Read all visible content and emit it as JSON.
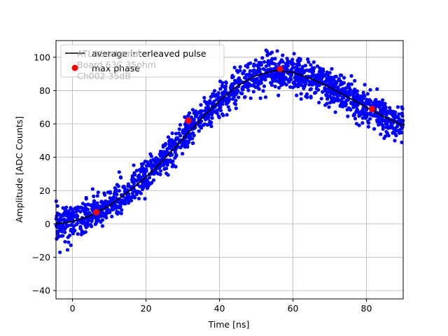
{
  "chart_data": {
    "type": "scatter",
    "title": "",
    "xlabel": "Time [ns]",
    "ylabel": "Amplitude [ADC Counts]",
    "xlim": [
      -4.5,
      90
    ],
    "ylim": [
      -45,
      110
    ],
    "xticks": [
      0,
      20,
      40,
      60,
      80
    ],
    "yticks": [
      -40,
      -20,
      0,
      20,
      40,
      60,
      80,
      100
    ],
    "grid": true,
    "legend_position": "top-left",
    "annotation_lines": [
      "ATLAS Internal",
      "Board 63C 35ohm",
      "Ch002 35dB"
    ],
    "colors": {
      "samples": "#0000ff",
      "average": "#000000",
      "max_phase": "#ff0000",
      "grid": "#b0b0b0"
    },
    "series": [
      {
        "name": "",
        "kind": "scatter-cloud",
        "description_of_cloud": "dense samples around the average pulse",
        "scatter_spread": 5
      },
      {
        "name": "average interleaved pulse",
        "kind": "line",
        "x": [
          -4.5,
          0,
          5,
          10,
          15,
          20,
          25,
          30,
          35,
          40,
          45,
          50,
          55,
          60,
          65,
          70,
          75,
          80,
          85,
          90
        ],
        "y": [
          0,
          1.5,
          5,
          11,
          19,
          28,
          39,
          51,
          63,
          74,
          83,
          89,
          92,
          91,
          87,
          82,
          76,
          70,
          64,
          59
        ]
      },
      {
        "name": "max phase",
        "kind": "points",
        "x": [
          6.5,
          31.5,
          56.5,
          81.5
        ],
        "y": [
          7,
          62,
          93,
          69
        ]
      }
    ]
  }
}
